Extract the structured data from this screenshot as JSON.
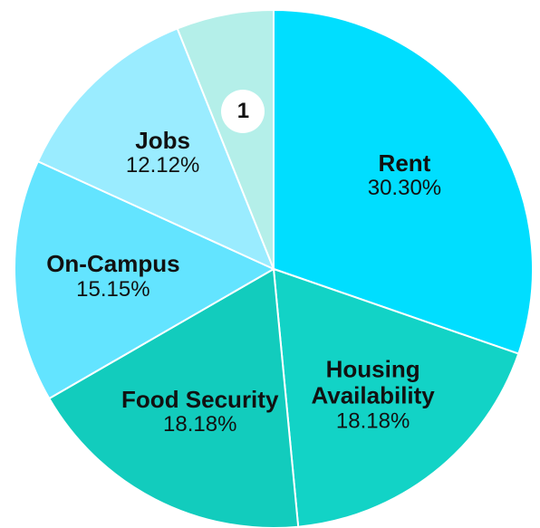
{
  "chart_data": {
    "type": "pie",
    "categories": [
      "Rent",
      "Housing Availability",
      "Food Security",
      "On-Campus",
      "Jobs",
      "1"
    ],
    "values": [
      30.3,
      18.18,
      18.18,
      15.15,
      12.12,
      6.06
    ],
    "value_labels": [
      "30.30%",
      "18.18%",
      "18.18%",
      "15.15%",
      "12.12%",
      null
    ],
    "colors": [
      "#00deff",
      "#12d3c6",
      "#12ccbd",
      "#63e4ff",
      "#9aecff",
      "#b4efe9"
    ],
    "start_angle": 0,
    "direction": "clockwise"
  }
}
